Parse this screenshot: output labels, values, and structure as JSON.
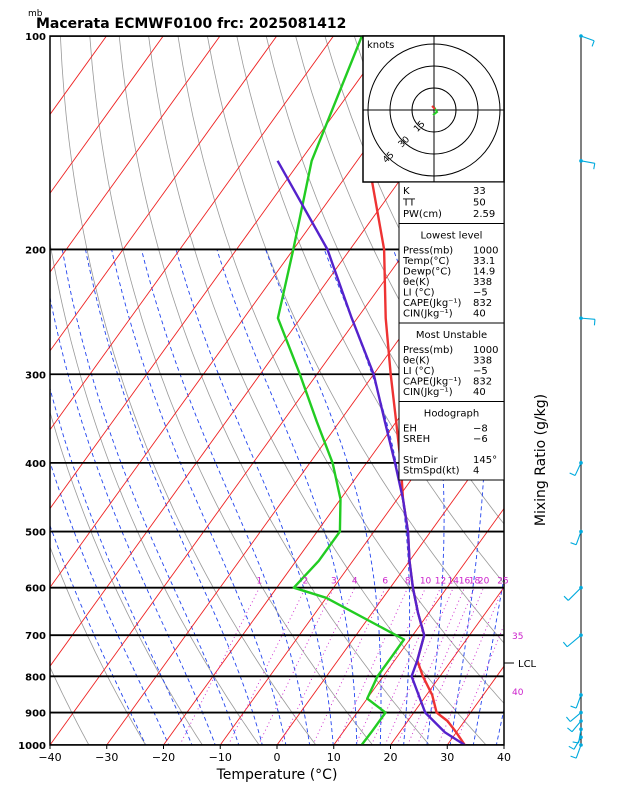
{
  "title": "Macerata ECMWF0100 frc: 2025081412",
  "top_unit": "mb",
  "xlabel": "Temperature (°C)",
  "right_label": "Mixing Ratio (g/kg)",
  "lcl_label": "LCL",
  "colors": {
    "temperature": "#ee3333",
    "dewpoint": "#22cc22",
    "parcel": "#5522cc",
    "isotherm": "#ee2222",
    "dry_adiabat": "#999999",
    "moist_adiabat": "#2244ee",
    "mixing_ratio": "#cc22cc",
    "wind": "#00aadd"
  },
  "hodograph": {
    "unit": "knots",
    "ring_labels": [
      "15",
      "30",
      "45"
    ]
  },
  "table": [
    {
      "type": "rows",
      "rows": [
        [
          "K",
          "33"
        ],
        [
          "TT",
          "50"
        ],
        [
          "PW(cm)",
          "2.59"
        ]
      ]
    },
    {
      "type": "section",
      "title": "Lowest level",
      "rows": [
        [
          "Press(mb)",
          "1000"
        ],
        [
          "Temp(°C)",
          "33.1"
        ],
        [
          "Dewp(°C)",
          "14.9"
        ],
        [
          "θe(K)",
          "338"
        ],
        [
          "LI (°C)",
          "−5"
        ],
        [
          "CAPE(Jkg⁻¹)",
          "832"
        ],
        [
          "CIN(Jkg⁻¹)",
          "40"
        ]
      ]
    },
    {
      "type": "section",
      "title": "Most Unstable",
      "rows": [
        [
          "Press(mb)",
          "1000"
        ],
        [
          "θe(K)",
          "338"
        ],
        [
          "LI (°C)",
          "−5"
        ],
        [
          "CAPE(Jkg⁻¹)",
          "832"
        ],
        [
          "CIN(Jkg⁻¹)",
          "40"
        ]
      ]
    },
    {
      "type": "section",
      "title": "Hodograph",
      "rows": [
        [
          "EH",
          "−8"
        ],
        [
          "SREH",
          "−6"
        ],
        [
          "",
          ""
        ],
        [
          "StmDir",
          "145°"
        ],
        [
          "StmSpd(kt)",
          "4"
        ]
      ]
    }
  ],
  "chart_data": {
    "type": "line",
    "title": "Macerata ECMWF0100 frc: 2025081412",
    "xlabel": "Temperature (°C)",
    "ylabel": "mb",
    "xlim": [
      -40,
      40
    ],
    "ylim": [
      1000,
      100
    ],
    "y_scale": "log",
    "x_ticks": [
      "−40",
      "−30",
      "−20",
      "−10",
      "0",
      "10",
      "20",
      "30",
      "40"
    ],
    "y_ticks": [
      100,
      200,
      300,
      400,
      500,
      600,
      700,
      800,
      900,
      1000
    ],
    "grid": true,
    "mixing_ratio_labels": [
      "1",
      "2",
      "3",
      "4",
      "6",
      "8",
      "10",
      "12",
      "14",
      "16",
      "18",
      "20",
      "25",
      "30"
    ],
    "isotherm_labels": [
      "35",
      "40"
    ],
    "series": [
      {
        "name": "Temperature",
        "points": [
          [
            33.1,
            1000
          ],
          [
            30,
            960
          ],
          [
            27,
            925
          ],
          [
            24,
            900
          ],
          [
            21,
            850
          ],
          [
            17,
            800
          ],
          [
            14,
            760
          ],
          [
            12,
            700
          ],
          [
            8,
            650
          ],
          [
            4,
            600
          ],
          [
            0,
            550
          ],
          [
            -4,
            500
          ],
          [
            -9,
            450
          ],
          [
            -14,
            400
          ],
          [
            -20,
            350
          ],
          [
            -27,
            300
          ],
          [
            -35,
            250
          ],
          [
            -44,
            200
          ],
          [
            -58,
            150
          ],
          [
            -67,
            100
          ]
        ]
      },
      {
        "name": "Dewpoint",
        "points": [
          [
            14.9,
            1000
          ],
          [
            15,
            960
          ],
          [
            15,
            900
          ],
          [
            10,
            860
          ],
          [
            9,
            800
          ],
          [
            9,
            750
          ],
          [
            9,
            710
          ],
          [
            5,
            690
          ],
          [
            -10,
            620
          ],
          [
            -17,
            600
          ],
          [
            -16,
            550
          ],
          [
            -16,
            500
          ],
          [
            -20,
            450
          ],
          [
            -26,
            400
          ],
          [
            -34,
            350
          ],
          [
            -43,
            300
          ],
          [
            -54,
            250
          ],
          [
            -60,
            200
          ],
          [
            -68,
            150
          ],
          [
            -75,
            100
          ]
        ]
      },
      {
        "name": "Parcel",
        "points": [
          [
            33.1,
            1000
          ],
          [
            28,
            960
          ],
          [
            22,
            900
          ],
          [
            15,
            800
          ],
          [
            14,
            760
          ],
          [
            12,
            700
          ],
          [
            8,
            650
          ],
          [
            4,
            600
          ],
          [
            0,
            550
          ],
          [
            -4,
            500
          ],
          [
            -9,
            450
          ],
          [
            -15,
            400
          ],
          [
            -22,
            350
          ],
          [
            -30,
            300
          ],
          [
            -41,
            250
          ],
          [
            -54,
            200
          ],
          [
            -74,
            150
          ]
        ]
      }
    ],
    "wind_barbs": [
      {
        "pressure": 1000,
        "speed_kt": 5
      },
      {
        "pressure": 975,
        "speed_kt": 5
      },
      {
        "pressure": 950,
        "speed_kt": 5
      },
      {
        "pressure": 925,
        "speed_kt": 5
      },
      {
        "pressure": 900,
        "speed_kt": 5
      },
      {
        "pressure": 850,
        "speed_kt": 5
      },
      {
        "pressure": 700,
        "speed_kt": 10
      },
      {
        "pressure": 600,
        "speed_kt": 10
      },
      {
        "pressure": 500,
        "speed_kt": 5
      },
      {
        "pressure": 400,
        "speed_kt": 5
      },
      {
        "pressure": 250,
        "speed_kt": 5
      },
      {
        "pressure": 150,
        "speed_kt": 5
      },
      {
        "pressure": 100,
        "speed_kt": 5
      }
    ]
  }
}
